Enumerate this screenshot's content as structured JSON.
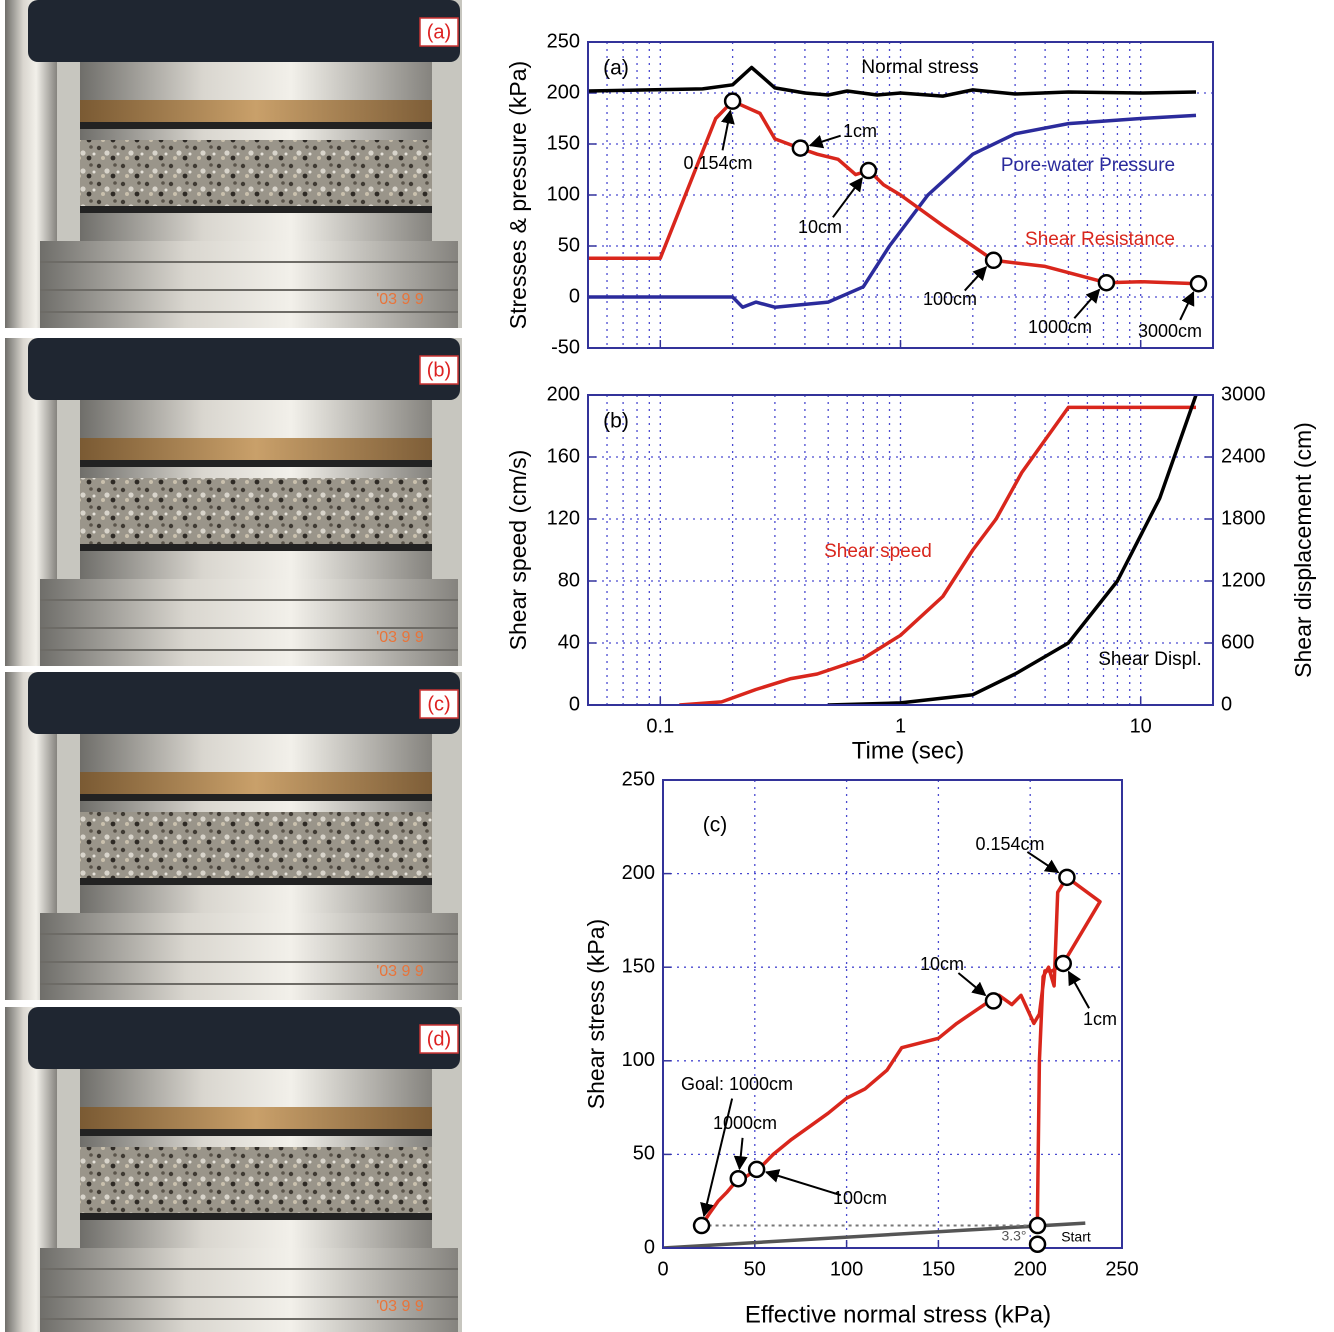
{
  "photos": [
    {
      "label": "(a)",
      "stamp": "'03 9 9"
    },
    {
      "label": "(b)",
      "stamp": "'03 9 9"
    },
    {
      "label": "(c)",
      "stamp": "'03 9 9"
    },
    {
      "label": "(d)",
      "stamp": "'03 9 9"
    }
  ],
  "chart_data": [
    {
      "type": "line",
      "panel_label": "(a)",
      "ylabel": "Stresses & pressure (kPa)",
      "xscale": "log",
      "xlim": [
        0.05,
        20
      ],
      "xticks": [
        0.1,
        1,
        10
      ],
      "xticklabels": false,
      "xminorticks": [
        0.06,
        0.07,
        0.08,
        0.09,
        0.2,
        0.3,
        0.4,
        0.5,
        0.6,
        0.7,
        0.8,
        0.9,
        2,
        3,
        4,
        5,
        6,
        7,
        8,
        9
      ],
      "ylim": [
        -50,
        250
      ],
      "yticks": [
        -50,
        0,
        50,
        100,
        150,
        200,
        250
      ],
      "grid": true,
      "series": [
        {
          "name": "Normal stress",
          "color": "#000000",
          "x": [
            0.05,
            0.15,
            0.2,
            0.24,
            0.3,
            0.4,
            0.5,
            0.6,
            0.8,
            1,
            1.5,
            2,
            3,
            5,
            10,
            17
          ],
          "values": [
            202,
            204,
            208,
            225,
            205,
            200,
            198,
            202,
            198,
            200,
            197,
            203,
            199,
            201,
            200,
            201
          ]
        },
        {
          "name": "Pore-water Pressure",
          "color": "#2b2b9c",
          "x": [
            0.05,
            0.2,
            0.22,
            0.25,
            0.3,
            0.5,
            0.7,
            0.9,
            1.3,
            2,
            3,
            5,
            10,
            17
          ],
          "values": [
            0,
            0,
            -10,
            -5,
            -10,
            -5,
            10,
            50,
            100,
            140,
            160,
            170,
            175,
            178
          ]
        },
        {
          "name": "Shear Resistance",
          "color": "#d9261c",
          "x": [
            0.05,
            0.1,
            0.17,
            0.2,
            0.26,
            0.3,
            0.38,
            0.45,
            0.55,
            0.65,
            0.74,
            0.85,
            1,
            1.5,
            2,
            2.44,
            4,
            7.2,
            10,
            17.4
          ],
          "values": [
            38,
            38,
            175,
            192,
            180,
            155,
            146,
            140,
            135,
            120,
            124,
            110,
            100,
            70,
            50,
            36,
            30,
            14,
            15,
            13
          ]
        }
      ],
      "annotations": [
        {
          "text": "0.154cm",
          "x": 0.2,
          "y": 192
        },
        {
          "text": "1cm",
          "x": 0.383,
          "y": 146
        },
        {
          "text": "10cm",
          "x": 0.736,
          "y": 124
        },
        {
          "text": "100cm",
          "x": 2.44,
          "y": 36
        },
        {
          "text": "1000cm",
          "x": 7.2,
          "y": 14
        },
        {
          "text": "3000cm",
          "x": 17.4,
          "y": 13
        }
      ]
    },
    {
      "type": "line",
      "panel_label": "(b)",
      "xlabel": "Time (sec)",
      "ylabel": "Shear speed (cm/s)",
      "y2label": "Shear displacement (cm)",
      "xscale": "log",
      "xlim": [
        0.05,
        20
      ],
      "xticks": [
        0.1,
        1,
        10
      ],
      "xticklabels": true,
      "xminorticks": [
        0.06,
        0.07,
        0.08,
        0.09,
        0.2,
        0.3,
        0.4,
        0.5,
        0.6,
        0.7,
        0.8,
        0.9,
        2,
        3,
        4,
        5,
        6,
        7,
        8,
        9
      ],
      "ylim": [
        0,
        200
      ],
      "yticks": [
        0,
        40,
        80,
        120,
        160,
        200
      ],
      "y2lim": [
        0,
        3000
      ],
      "y2ticks": [
        0,
        600,
        1200,
        1800,
        2400,
        3000
      ],
      "grid": true,
      "series": [
        {
          "name": "Shear speed",
          "color": "#d9261c",
          "x": [
            0.12,
            0.18,
            0.25,
            0.35,
            0.45,
            0.7,
            1,
            1.5,
            2,
            2.5,
            3.2,
            5,
            17
          ],
          "values": [
            0,
            2,
            10,
            17,
            20,
            30,
            45,
            70,
            100,
            120,
            150,
            192,
            192
          ]
        },
        {
          "name": "Shear Displ.",
          "color": "#000000",
          "axis": "y2",
          "x": [
            0.5,
            1,
            2,
            3,
            5,
            8,
            12,
            17
          ],
          "values": [
            0,
            20,
            100,
            300,
            600,
            1200,
            2000,
            3000
          ]
        }
      ]
    },
    {
      "type": "line",
      "panel_label": "(c)",
      "xlabel": "Effective normal stress (kPa)",
      "ylabel": "Shear stress (kPa)",
      "xlim": [
        0,
        250
      ],
      "xticks": [
        0,
        50,
        100,
        150,
        200,
        250
      ],
      "ylim": [
        0,
        250
      ],
      "yticks": [
        0,
        50,
        100,
        150,
        200,
        250
      ],
      "grid": true,
      "series": [
        {
          "color": "#d9261c",
          "x": [
            204,
            204,
            205,
            207,
            210,
            213,
            215,
            220,
            238,
            218,
            212,
            208,
            205,
            202,
            195,
            190,
            183,
            178,
            160,
            150,
            130,
            122,
            110,
            100,
            90,
            80,
            70,
            60,
            55,
            51,
            45,
            41,
            35,
            30,
            25,
            21
          ],
          "values": [
            12,
            20,
            100,
            145,
            150,
            140,
            190,
            198,
            185,
            152,
            148,
            148,
            125,
            120,
            135,
            130,
            135,
            132,
            120,
            112,
            107,
            95,
            85,
            80,
            72,
            65,
            58,
            50,
            45,
            42,
            38,
            37,
            30,
            25,
            18,
            12
          ]
        },
        {
          "color": "#555555",
          "x": [
            0,
            230
          ],
          "values": [
            0,
            13.3
          ]
        },
        {
          "color": "#777777",
          "dash": true,
          "x": [
            21,
            204
          ],
          "values": [
            12,
            12
          ]
        }
      ],
      "annotations": [
        {
          "text": "0.154cm",
          "x": 220,
          "y": 198
        },
        {
          "text": "1cm",
          "x": 218,
          "y": 152
        },
        {
          "text": "10cm",
          "x": 180,
          "y": 132
        },
        {
          "text": "100cm",
          "x": 51,
          "y": 42
        },
        {
          "text": "1000cm",
          "x": 41,
          "y": 37
        },
        {
          "text": "Goal: 1000cm",
          "x": 21,
          "y": 12
        },
        {
          "text": "Start",
          "x": 204,
          "y": 2
        },
        {
          "x": 204,
          "y": 12
        }
      ],
      "angle_label": "3.3°"
    }
  ]
}
